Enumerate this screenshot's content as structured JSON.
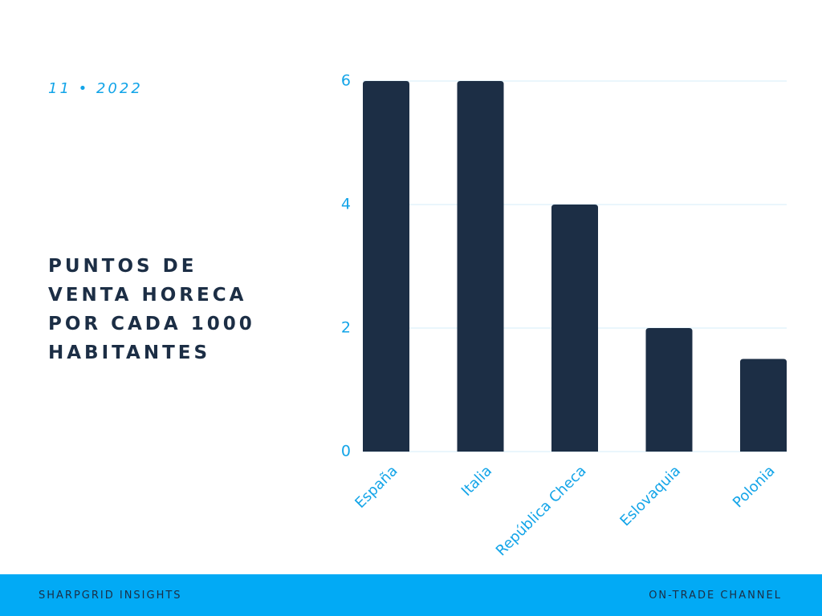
{
  "date_label": "11 • 2022",
  "title_lines": [
    "PUNTOS DE",
    "VENTA HORECA",
    "POR CADA 1000",
    "HABITANTES"
  ],
  "footer": {
    "left": "SHARPGRID INSIGHTS",
    "right": "ON-TRADE CHANNEL"
  },
  "colors": {
    "bar": "#1c2e45",
    "accent": "#12a4e8",
    "footer_bg": "#02aaf5",
    "grid": "#d6eef9"
  },
  "chart_data": {
    "type": "bar",
    "categories": [
      "España",
      "Italia",
      "República Checa",
      "Eslovaquia",
      "Polonia"
    ],
    "values": [
      6,
      6,
      4,
      2,
      1.5
    ],
    "title": "PUNTOS DE VENTA HORECA POR CADA 1000 HABITANTES",
    "xlabel": "",
    "ylabel": "",
    "ylim": [
      0,
      6
    ],
    "yticks": [
      0,
      2,
      4,
      6
    ],
    "grid": true,
    "legend": "none"
  }
}
